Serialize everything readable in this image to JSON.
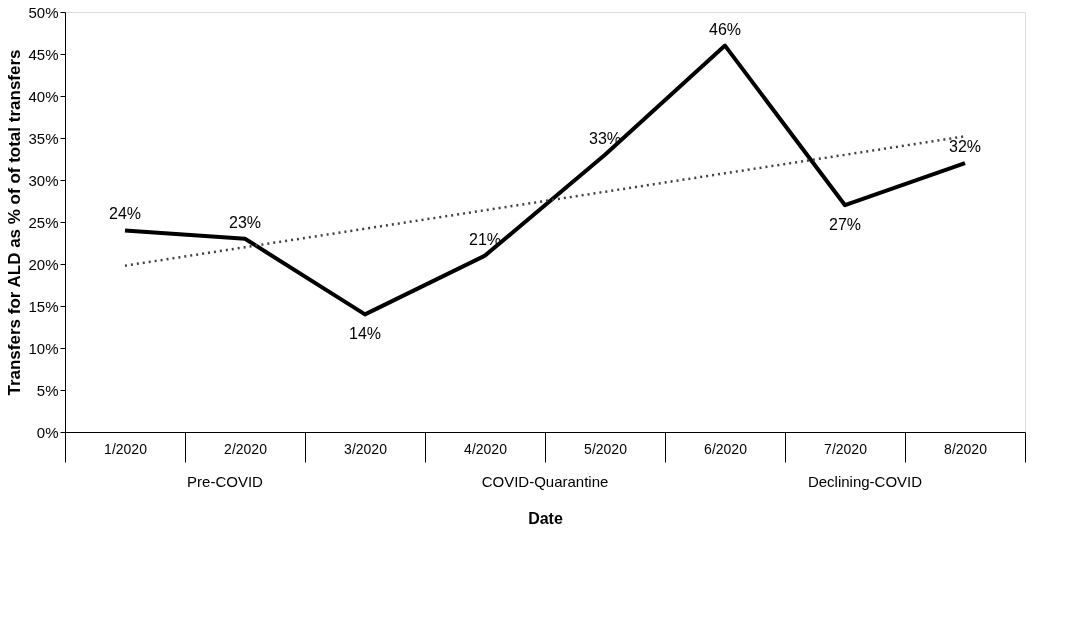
{
  "chart_data": {
    "type": "line",
    "xlabel": "Date",
    "ylabel": "Transfers for ALD as % of of total transfers",
    "categories": [
      "1/2020",
      "2/2020",
      "3/2020",
      "4/2020",
      "5/2020",
      "6/2020",
      "7/2020",
      "8/2020"
    ],
    "series": [
      {
        "color": "#000000",
        "values": [
          24,
          23,
          14,
          21,
          33,
          46,
          27,
          32
        ],
        "value_labels": [
          "24%",
          "23%",
          "14%",
          "21%",
          "33%",
          "46%",
          "27%",
          "32%"
        ],
        "line_style": "solid"
      },
      {
        "color": "#404040",
        "values": [
          19.8,
          22.0,
          24.2,
          26.4,
          28.6,
          30.8,
          33.0,
          35.2
        ],
        "line_style": "dotted"
      }
    ],
    "ylim": [
      0,
      50
    ],
    "yticks": [
      {
        "value": 0,
        "label": "0%"
      },
      {
        "value": 5,
        "label": "5%"
      },
      {
        "value": 10,
        "label": "10%"
      },
      {
        "value": 15,
        "label": "15%"
      },
      {
        "value": 20,
        "label": "20%"
      },
      {
        "value": 25,
        "label": "25%"
      },
      {
        "value": 30,
        "label": "30%"
      },
      {
        "value": 35,
        "label": "35%"
      },
      {
        "value": 40,
        "label": "40%"
      },
      {
        "value": 45,
        "label": "45%"
      },
      {
        "value": 50,
        "label": "50%"
      }
    ],
    "annotations": [
      "Pre-COVID",
      "COVID-Quarantine",
      "Declining-COVID"
    ],
    "grid": false,
    "marker": "none"
  }
}
